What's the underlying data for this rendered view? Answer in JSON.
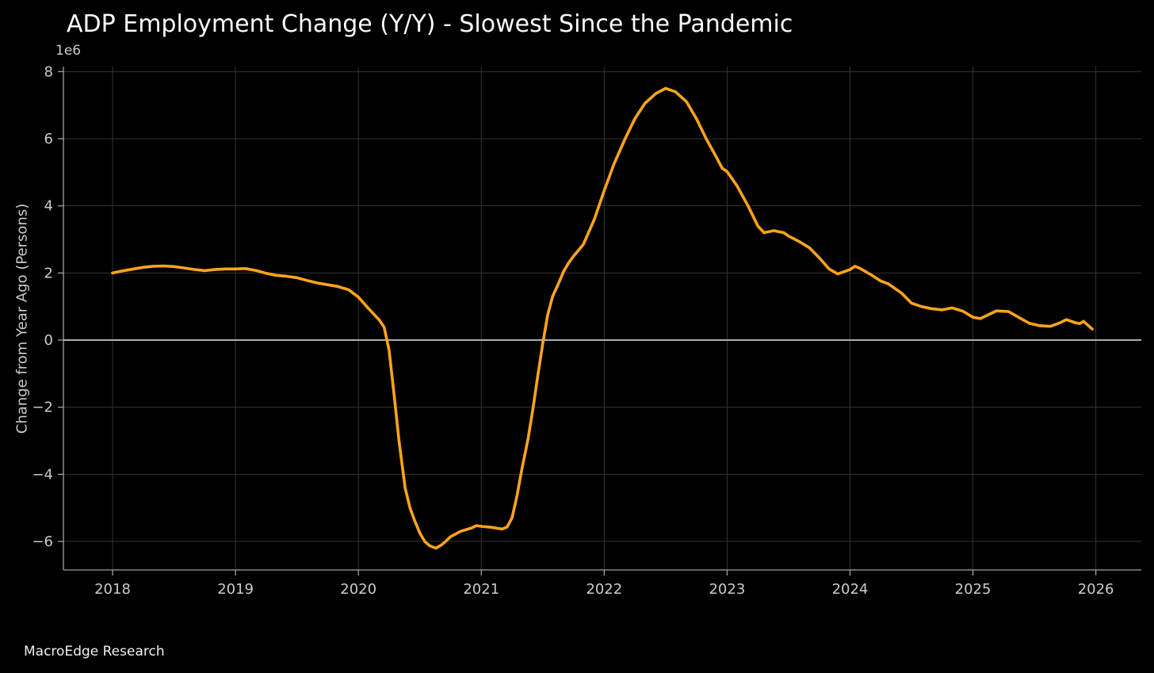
{
  "title": "ADP Employment Change (Y/Y) - Slowest Since the Pandemic",
  "footer": "MacroEdge Research",
  "colors": {
    "background": "#000000",
    "line": "#FFA41C",
    "grid": "#343434",
    "zero_line": "#ADADAD",
    "spine": "#A0A0A0",
    "tick_label": "#CBCBCB",
    "title_text": "#FAFAFA"
  },
  "chart_data": {
    "type": "line",
    "title": "ADP Employment Change (Y/Y) - Slowest Since the Pandemic",
    "xlabel": "",
    "ylabel": "Change from Year Ago (Persons)",
    "y_offset_text": "1e6",
    "grid": true,
    "legend": null,
    "xlim": [
      2017.6,
      2026.37
    ],
    "ylim": [
      -6850000,
      8150000
    ],
    "x_tick_values": [
      2018,
      2019,
      2020,
      2021,
      2022,
      2023,
      2024,
      2025,
      2026
    ],
    "x_tick_labels": [
      "2018",
      "2019",
      "2020",
      "2021",
      "2022",
      "2023",
      "2024",
      "2025",
      "2026"
    ],
    "y_tick_values": [
      8000000,
      6000000,
      4000000,
      2000000,
      0,
      -2000000,
      -4000000,
      -6000000
    ],
    "y_tick_labels": [
      "8",
      "6",
      "4",
      "2",
      "0",
      "−2",
      "−4",
      "−6"
    ],
    "zero_line": true,
    "series": [
      {
        "name": "ADP Employment Change Y/Y",
        "color": "#FFA41C",
        "points": [
          [
            2018.0,
            2000000
          ],
          [
            2018.08,
            2060000
          ],
          [
            2018.17,
            2120000
          ],
          [
            2018.25,
            2170000
          ],
          [
            2018.33,
            2200000
          ],
          [
            2018.42,
            2210000
          ],
          [
            2018.5,
            2190000
          ],
          [
            2018.58,
            2150000
          ],
          [
            2018.67,
            2100000
          ],
          [
            2018.75,
            2070000
          ],
          [
            2018.83,
            2100000
          ],
          [
            2018.92,
            2120000
          ],
          [
            2019.0,
            2120000
          ],
          [
            2019.08,
            2130000
          ],
          [
            2019.17,
            2070000
          ],
          [
            2019.25,
            1990000
          ],
          [
            2019.33,
            1930000
          ],
          [
            2019.42,
            1900000
          ],
          [
            2019.5,
            1860000
          ],
          [
            2019.58,
            1780000
          ],
          [
            2019.67,
            1700000
          ],
          [
            2019.75,
            1650000
          ],
          [
            2019.83,
            1600000
          ],
          [
            2019.92,
            1500000
          ],
          [
            2020.0,
            1280000
          ],
          [
            2020.08,
            950000
          ],
          [
            2020.17,
            600000
          ],
          [
            2020.21,
            380000
          ],
          [
            2020.25,
            -300000
          ],
          [
            2020.29,
            -1600000
          ],
          [
            2020.33,
            -3000000
          ],
          [
            2020.38,
            -4400000
          ],
          [
            2020.42,
            -5000000
          ],
          [
            2020.46,
            -5400000
          ],
          [
            2020.5,
            -5750000
          ],
          [
            2020.54,
            -6000000
          ],
          [
            2020.58,
            -6130000
          ],
          [
            2020.63,
            -6200000
          ],
          [
            2020.67,
            -6120000
          ],
          [
            2020.71,
            -6000000
          ],
          [
            2020.75,
            -5860000
          ],
          [
            2020.83,
            -5700000
          ],
          [
            2020.92,
            -5600000
          ],
          [
            2020.96,
            -5530000
          ],
          [
            2021.0,
            -5550000
          ],
          [
            2021.08,
            -5580000
          ],
          [
            2021.17,
            -5630000
          ],
          [
            2021.21,
            -5570000
          ],
          [
            2021.25,
            -5300000
          ],
          [
            2021.29,
            -4650000
          ],
          [
            2021.33,
            -3850000
          ],
          [
            2021.38,
            -2950000
          ],
          [
            2021.42,
            -2050000
          ],
          [
            2021.46,
            -1050000
          ],
          [
            2021.5,
            -100000
          ],
          [
            2021.54,
            750000
          ],
          [
            2021.58,
            1300000
          ],
          [
            2021.63,
            1700000
          ],
          [
            2021.67,
            2050000
          ],
          [
            2021.71,
            2300000
          ],
          [
            2021.75,
            2500000
          ],
          [
            2021.83,
            2850000
          ],
          [
            2021.92,
            3600000
          ],
          [
            2022.0,
            4450000
          ],
          [
            2022.08,
            5250000
          ],
          [
            2022.17,
            6000000
          ],
          [
            2022.25,
            6600000
          ],
          [
            2022.33,
            7050000
          ],
          [
            2022.42,
            7350000
          ],
          [
            2022.5,
            7500000
          ],
          [
            2022.58,
            7400000
          ],
          [
            2022.67,
            7100000
          ],
          [
            2022.75,
            6600000
          ],
          [
            2022.83,
            6000000
          ],
          [
            2022.92,
            5400000
          ],
          [
            2022.96,
            5120000
          ],
          [
            2023.0,
            5020000
          ],
          [
            2023.08,
            4600000
          ],
          [
            2023.17,
            4000000
          ],
          [
            2023.25,
            3400000
          ],
          [
            2023.3,
            3200000
          ],
          [
            2023.38,
            3260000
          ],
          [
            2023.46,
            3200000
          ],
          [
            2023.5,
            3100000
          ],
          [
            2023.58,
            2950000
          ],
          [
            2023.67,
            2750000
          ],
          [
            2023.75,
            2450000
          ],
          [
            2023.83,
            2120000
          ],
          [
            2023.9,
            1970000
          ],
          [
            2024.0,
            2100000
          ],
          [
            2024.04,
            2200000
          ],
          [
            2024.08,
            2140000
          ],
          [
            2024.17,
            1950000
          ],
          [
            2024.25,
            1760000
          ],
          [
            2024.31,
            1680000
          ],
          [
            2024.42,
            1400000
          ],
          [
            2024.5,
            1100000
          ],
          [
            2024.58,
            1000000
          ],
          [
            2024.67,
            930000
          ],
          [
            2024.75,
            900000
          ],
          [
            2024.83,
            960000
          ],
          [
            2024.92,
            860000
          ],
          [
            2025.0,
            680000
          ],
          [
            2025.06,
            640000
          ],
          [
            2025.13,
            760000
          ],
          [
            2025.19,
            870000
          ],
          [
            2025.29,
            850000
          ],
          [
            2025.38,
            660000
          ],
          [
            2025.46,
            500000
          ],
          [
            2025.54,
            430000
          ],
          [
            2025.63,
            410000
          ],
          [
            2025.71,
            520000
          ],
          [
            2025.76,
            610000
          ],
          [
            2025.83,
            520000
          ],
          [
            2025.87,
            490000
          ],
          [
            2025.9,
            560000
          ],
          [
            2025.97,
            330000
          ]
        ]
      }
    ]
  }
}
